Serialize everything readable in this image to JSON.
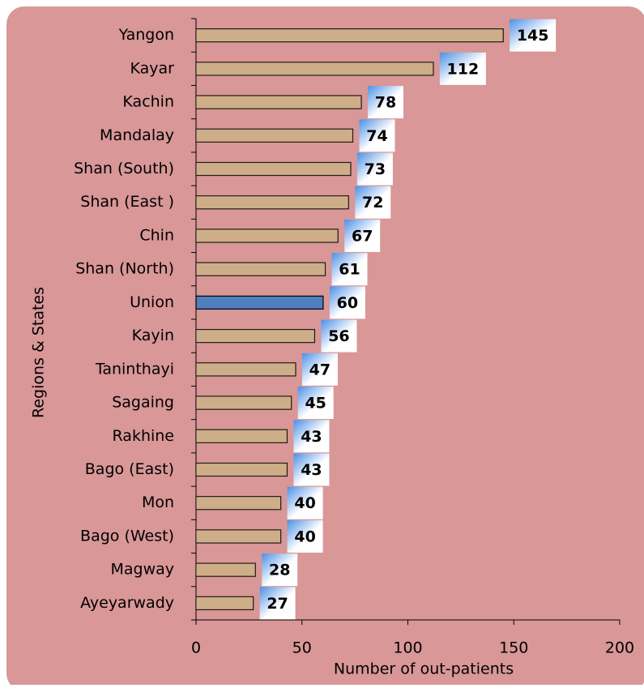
{
  "chart_data": {
    "type": "barh",
    "y_axis_label": "Regions & States",
    "x_axis_label": "Number of out-patients",
    "categories": [
      "Yangon",
      "Kayar",
      "Kachin",
      "Mandalay",
      "Shan (South)",
      "Shan (East )",
      "Chin",
      "Shan (North)",
      "Union",
      "Kayin",
      "Taninthayi",
      "Sagaing",
      "Rakhine",
      "Bago (East)",
      "Mon",
      "Bago (West)",
      "Magway",
      "Ayeyarwady"
    ],
    "values": [
      145,
      112,
      78,
      74,
      73,
      72,
      67,
      61,
      60,
      56,
      47,
      45,
      43,
      43,
      40,
      40,
      28,
      27
    ],
    "colors": [
      "#c9a77e",
      "#c9a77e",
      "#c9a77e",
      "#c9a77e",
      "#c9a77e",
      "#c9a77e",
      "#c9a77e",
      "#c9a77e",
      "#4f7fbf",
      "#c9a77e",
      "#c9a77e",
      "#c9a77e",
      "#c9a77e",
      "#c9a77e",
      "#c9a77e",
      "#c9a77e",
      "#c9a77e",
      "#c9a77e"
    ],
    "xlim": [
      0,
      200
    ],
    "xticks": [
      0,
      50,
      100,
      150,
      200
    ],
    "background": "#d99797"
  }
}
